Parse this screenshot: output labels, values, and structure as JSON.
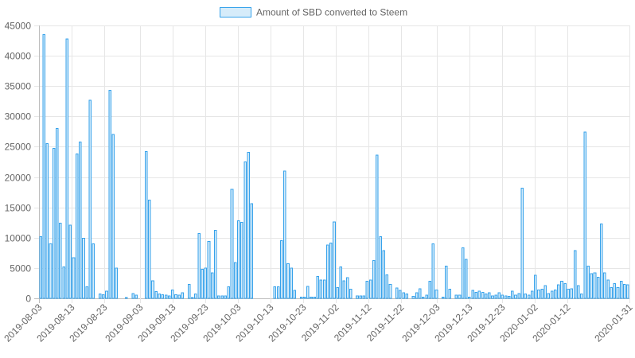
{
  "chart_data": {
    "type": "bar",
    "legend": {
      "label": "Amount of SBD converted to Steem",
      "placement": "top-center",
      "color": "#36a2eb",
      "fill": "#d6ecfa"
    },
    "x_start": "2019-08-03",
    "x_end": "2020-01-31",
    "x_tick_labels": [
      "2019-08-03",
      "2019-08-13",
      "2019-08-23",
      "2019-09-03",
      "2019-09-13",
      "2019-09-23",
      "2019-10-03",
      "2019-10-13",
      "2019-10-23",
      "2019-11-02",
      "2019-11-12",
      "2019-11-22",
      "2019-12-03",
      "2019-12-13",
      "2019-12-23",
      "2020-01-02",
      "2020-01-12",
      "2020-01-31"
    ],
    "ylim": [
      0,
      45000
    ],
    "y_ticks": [
      0,
      5000,
      10000,
      15000,
      20000,
      25000,
      30000,
      35000,
      40000,
      45000
    ],
    "y_tick_labels": [
      "0",
      "5000",
      "10000",
      "15000",
      "20000",
      "25000",
      "30000",
      "35000",
      "40000",
      "45000"
    ],
    "grid": true,
    "values": [
      10200,
      43500,
      25500,
      9000,
      24700,
      28000,
      12400,
      5200,
      42800,
      12100,
      6700,
      23800,
      25800,
      9900,
      1900,
      32700,
      9000,
      0,
      700,
      600,
      1200,
      34300,
      27000,
      5000,
      0,
      0,
      100,
      0,
      800,
      500,
      0,
      0,
      24200,
      16200,
      2900,
      1100,
      700,
      600,
      500,
      400,
      1400,
      600,
      500,
      900,
      0,
      2300,
      100,
      700,
      10700,
      4800,
      5000,
      9400,
      4200,
      11200,
      400,
      400,
      400,
      1900,
      18000,
      5900,
      12800,
      12500,
      22500,
      24100,
      15600,
      0,
      0,
      0,
      0,
      0,
      0,
      1900,
      1900,
      9500,
      21000,
      5700,
      5000,
      1300,
      0,
      200,
      200,
      2000,
      200,
      200,
      3600,
      3000,
      3000,
      8800,
      9100,
      12600,
      1800,
      5200,
      2900,
      3400,
      1500,
      0,
      400,
      400,
      400,
      2800,
      3000,
      6200,
      23600,
      10200,
      7900,
      3900,
      2300,
      0,
      1700,
      1300,
      900,
      700,
      0,
      300,
      900,
      1600,
      200,
      500,
      2800,
      9000,
      1400,
      0,
      200,
      5300,
      1500,
      0,
      500,
      500,
      8300,
      6400,
      200,
      1300,
      1000,
      1200,
      1000,
      700,
      900,
      400,
      500,
      900,
      500,
      400,
      300,
      1200,
      500,
      800,
      18200,
      700,
      500,
      1200,
      3800,
      1400,
      1500,
      2100,
      800,
      1200,
      1400,
      2200,
      2800,
      2400,
      1500,
      1600,
      7900,
      2100,
      700,
      27400,
      5300,
      4100,
      4200,
      3500,
      12300,
      4200,
      3000,
      1800,
      2400,
      1800,
      2800,
      2300,
      2200
    ]
  }
}
